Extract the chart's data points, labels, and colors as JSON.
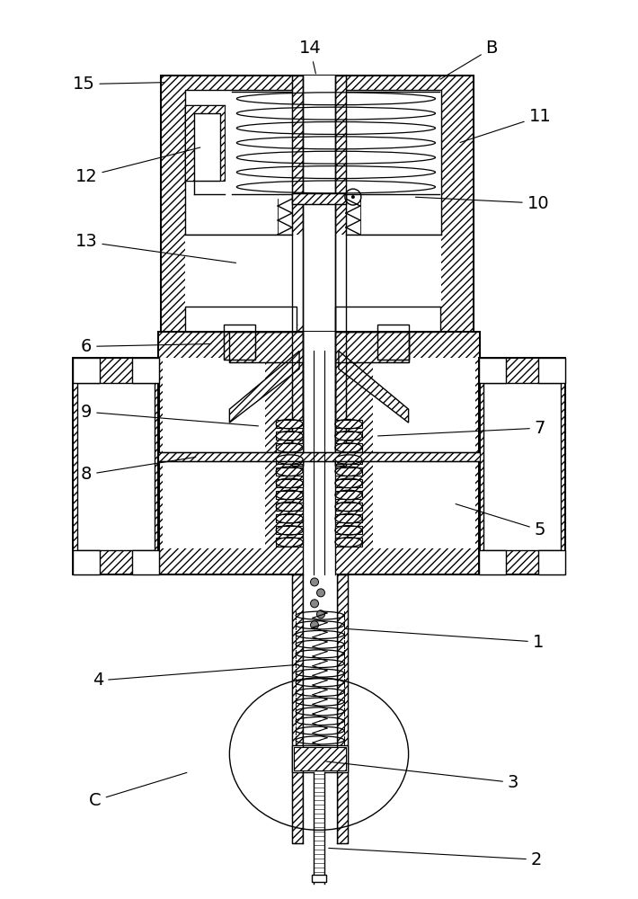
{
  "bg_color": "#ffffff",
  "line_color": "#000000",
  "fig_width": 7.1,
  "fig_height": 10.0,
  "dpi": 100
}
